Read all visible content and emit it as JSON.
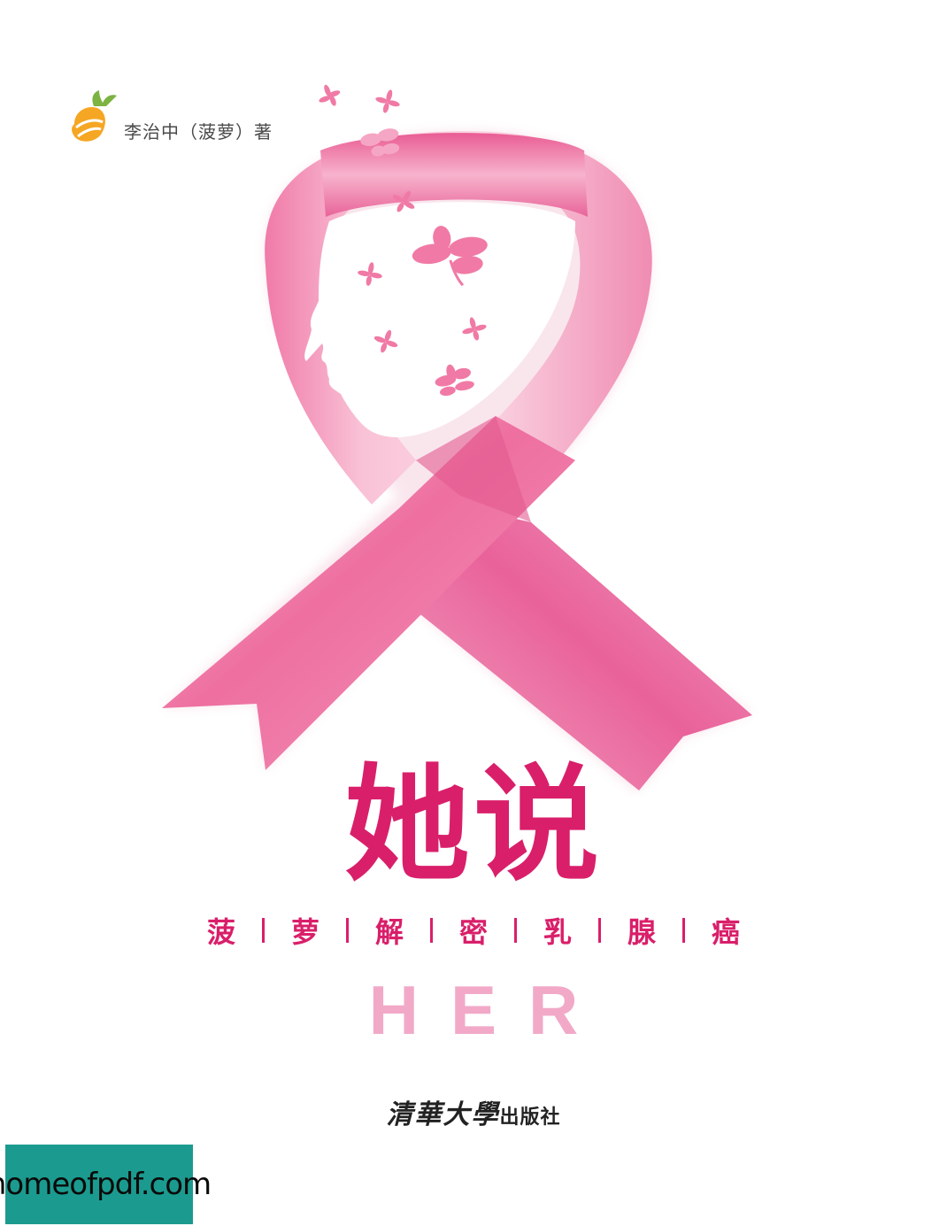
{
  "author": "李治中（菠萝）著",
  "title": "她说",
  "subtitle_chars": [
    "菠",
    "萝",
    "解",
    "密",
    "乳",
    "腺",
    "癌"
  ],
  "english_title": "HER",
  "publisher": {
    "calligraphy": "清華大學",
    "suffix": "出版社"
  },
  "watermark": "homeofpdf.com",
  "colors": {
    "accent": "#d91f6a",
    "ribbon": "#ee6a9c",
    "ribbon_light": "#f7b8d0",
    "her": "#f2a9c8",
    "watermark_bg": "#1b9b8f"
  },
  "icons": {
    "author_logo": "pineapple-logo-icon"
  }
}
